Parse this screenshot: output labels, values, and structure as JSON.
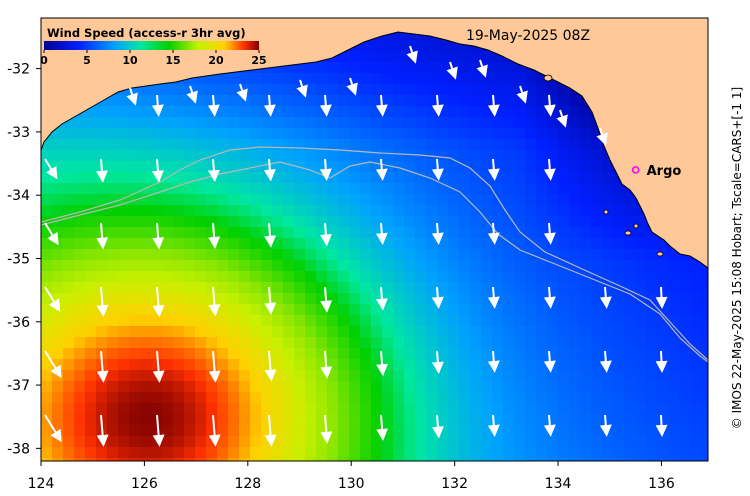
{
  "timestamp": "19-May-2025 08Z",
  "colorbar": {
    "title": "Wind Speed (access-r 3hr avg)",
    "ticks": [
      "0",
      "5",
      "10",
      "15",
      "20",
      "25"
    ],
    "min": 0,
    "max": 25
  },
  "axes": {
    "x_ticks": [
      "124",
      "126",
      "128",
      "130",
      "132",
      "134",
      "136"
    ],
    "y_ticks": [
      "-32",
      "-33",
      "-34",
      "-35",
      "-36",
      "-37",
      "-38"
    ],
    "lon_range": [
      124,
      136.9
    ],
    "lat_range": [
      -38.2,
      -31.2
    ]
  },
  "marker": {
    "label": "Argo",
    "lon": 135.5,
    "lat": -33.6
  },
  "credit": "© IMOS 22-May-2025 15:08 Hobart; Tscale=CARS+[-1 1]",
  "colors": {
    "land": "#ffc898",
    "arrow": "#ffffff",
    "isobath": "#b8b8b8",
    "marker": "#ff00ff"
  }
}
